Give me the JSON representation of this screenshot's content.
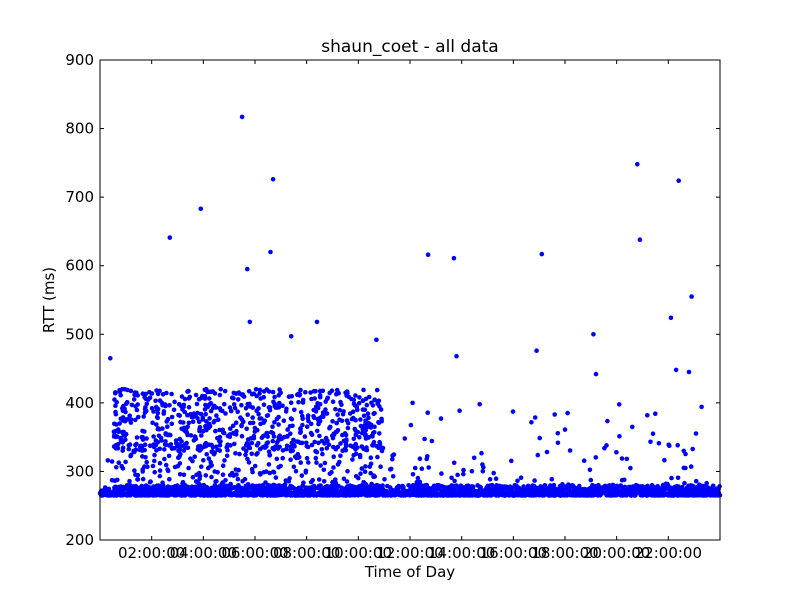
{
  "chart_data": {
    "type": "scatter",
    "title": "shaun_coet - all data",
    "xlabel": "Time of Day",
    "ylabel": "RTT (ms)",
    "x_unit": "hours",
    "xlim": [
      0,
      24
    ],
    "ylim": [
      200,
      900
    ],
    "x_ticks": [
      2,
      4,
      6,
      8,
      10,
      12,
      14,
      16,
      18,
      20,
      22
    ],
    "x_tick_labels": [
      "02:00:00",
      "04:00:00",
      "06:00:00",
      "08:00:00",
      "10:00:00",
      "12:00:00",
      "14:00:00",
      "16:00:00",
      "18:00:00",
      "20:00:00",
      "22:00:00"
    ],
    "y_ticks": [
      200,
      300,
      400,
      500,
      600,
      700,
      800,
      900
    ],
    "y_tick_labels": [
      "200",
      "300",
      "400",
      "500",
      "600",
      "700",
      "800",
      "900"
    ],
    "grid": false,
    "marker_color": "#0000ff",
    "baseline_band": [
      265,
      280
    ],
    "dense_cluster": {
      "x_range": [
        0.5,
        11.0
      ],
      "y_range": [
        330,
        420
      ]
    },
    "outliers": [
      [
        0.4,
        465
      ],
      [
        2.7,
        641
      ],
      [
        3.9,
        683
      ],
      [
        5.5,
        817
      ],
      [
        5.7,
        595
      ],
      [
        5.8,
        518
      ],
      [
        6.6,
        620
      ],
      [
        6.7,
        726
      ],
      [
        7.4,
        497
      ],
      [
        8.4,
        518
      ],
      [
        10.7,
        492
      ],
      [
        12.7,
        616
      ],
      [
        13.7,
        611
      ],
      [
        13.8,
        468
      ],
      [
        14.7,
        398
      ],
      [
        16.9,
        476
      ],
      [
        17.1,
        617
      ],
      [
        19.1,
        500
      ],
      [
        19.2,
        442
      ],
      [
        20.8,
        748
      ],
      [
        20.9,
        638
      ],
      [
        22.1,
        524
      ],
      [
        22.3,
        448
      ],
      [
        22.4,
        724
      ],
      [
        22.8,
        445
      ],
      [
        22.9,
        555
      ],
      [
        22.6,
        330
      ],
      [
        17.6,
        383
      ],
      [
        18.1,
        385
      ],
      [
        13.2,
        377
      ],
      [
        12.1,
        400
      ],
      [
        11.8,
        348
      ],
      [
        12.2,
        305
      ]
    ]
  }
}
